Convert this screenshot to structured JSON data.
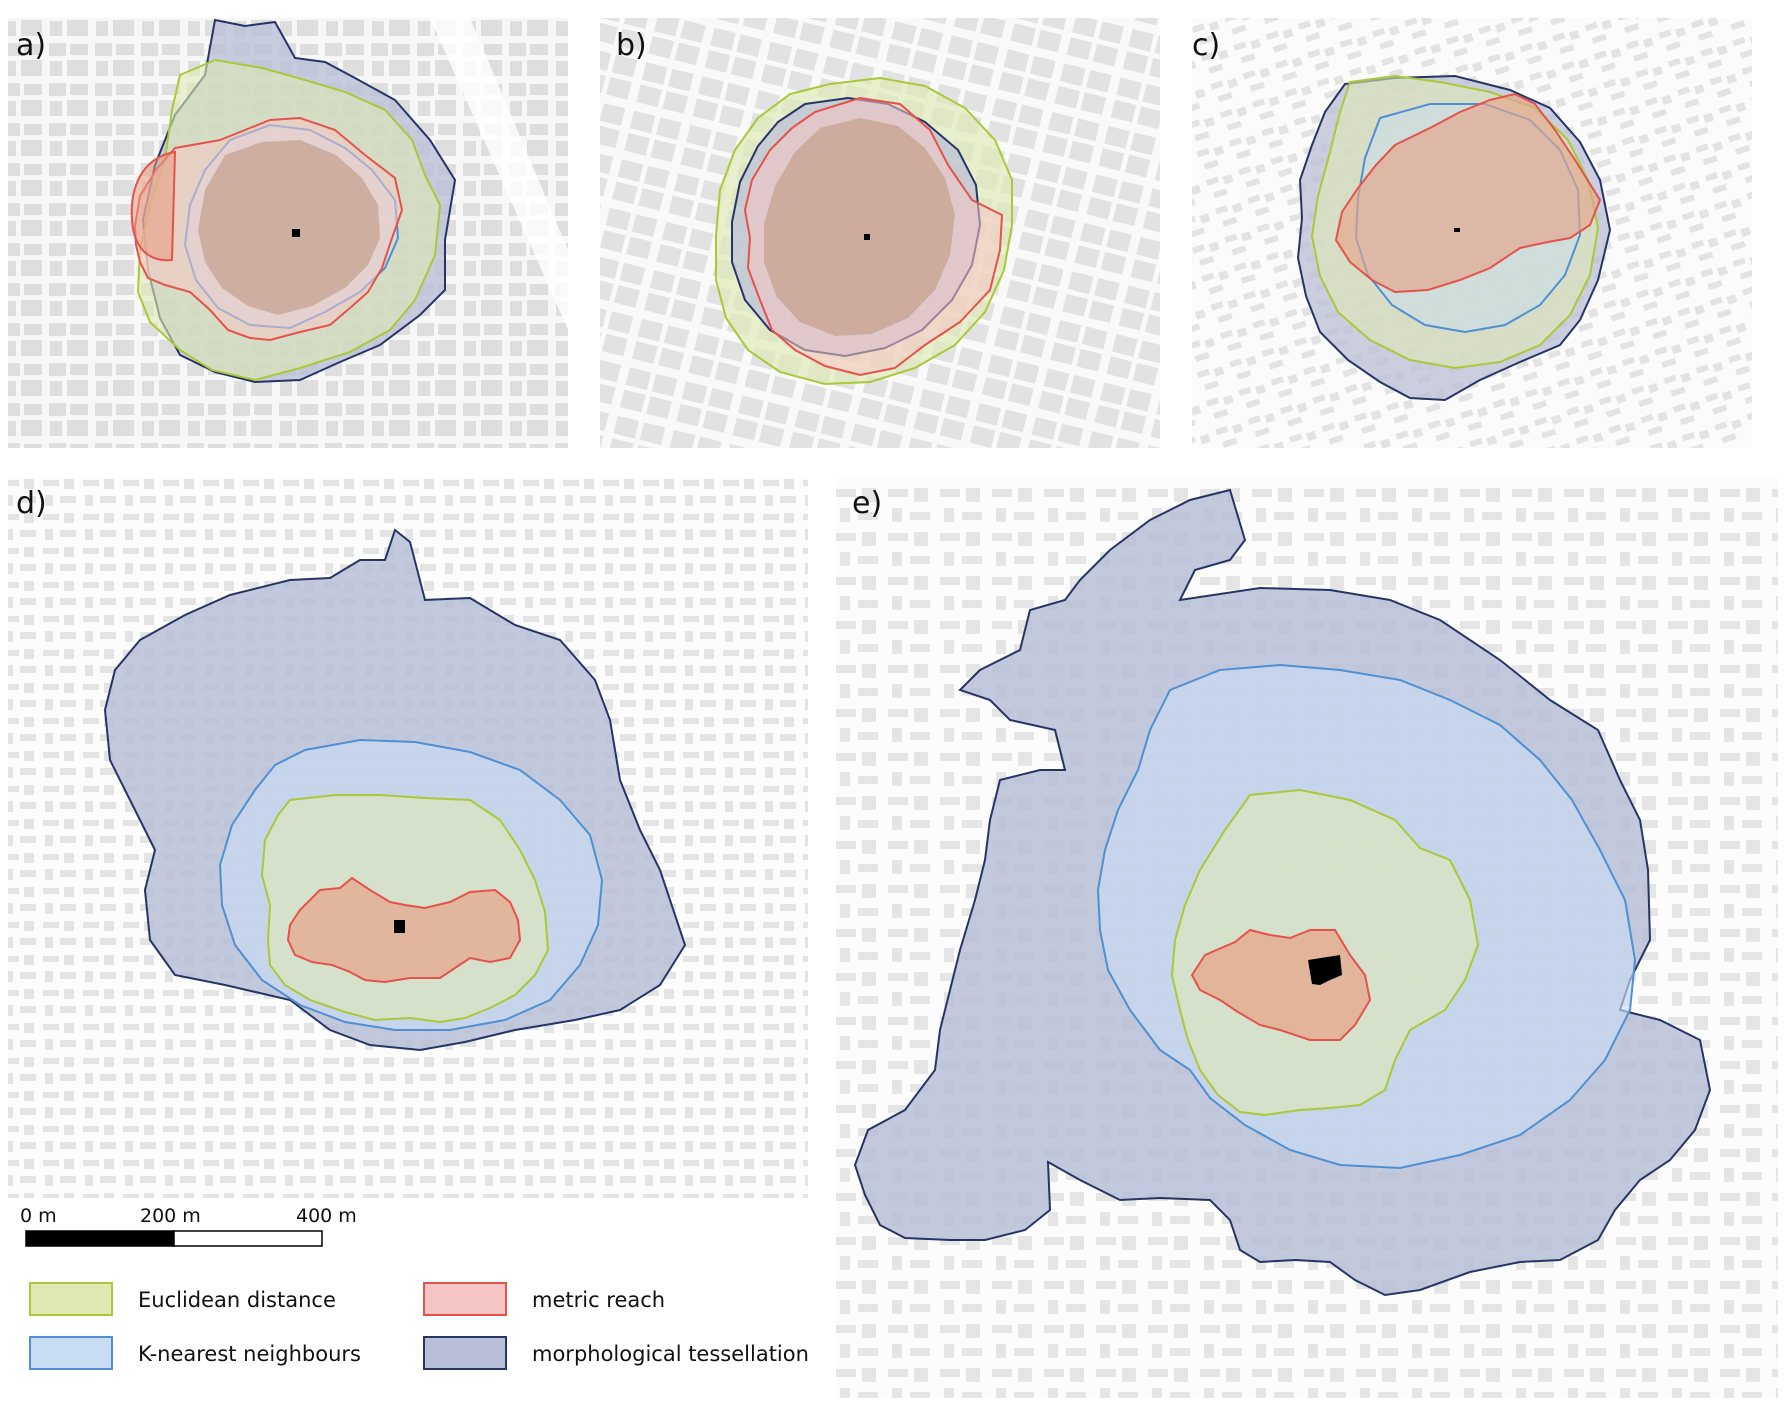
{
  "panels": [
    {
      "id": "a",
      "label": "a)"
    },
    {
      "id": "b",
      "label": "b)"
    },
    {
      "id": "c",
      "label": "c)"
    },
    {
      "id": "d",
      "label": "d)"
    },
    {
      "id": "e",
      "label": "e)"
    }
  ],
  "scale_bar": {
    "ticks": [
      "0 m",
      "200 m",
      "400 m"
    ]
  },
  "legend": {
    "items": [
      {
        "label": "Euclidean distance",
        "fill": "#dfe9b4",
        "stroke": "#a9c93a"
      },
      {
        "label": "metric reach",
        "fill": "#f6c6c4",
        "stroke": "#e5524c"
      },
      {
        "label": "K-nearest neighbours",
        "fill": "#c8dcf2",
        "stroke": "#4f8fd3"
      },
      {
        "label": "morphological tessellation",
        "fill": "#b9bfd6",
        "stroke": "#263566"
      }
    ]
  },
  "colors": {
    "background_buildings": "#ebebeb",
    "focal_building": "#000000",
    "euclidean": "#a9c93a",
    "metric_reach": "#e5524c",
    "knn": "#4f8fd3",
    "tessellation": "#263566"
  }
}
